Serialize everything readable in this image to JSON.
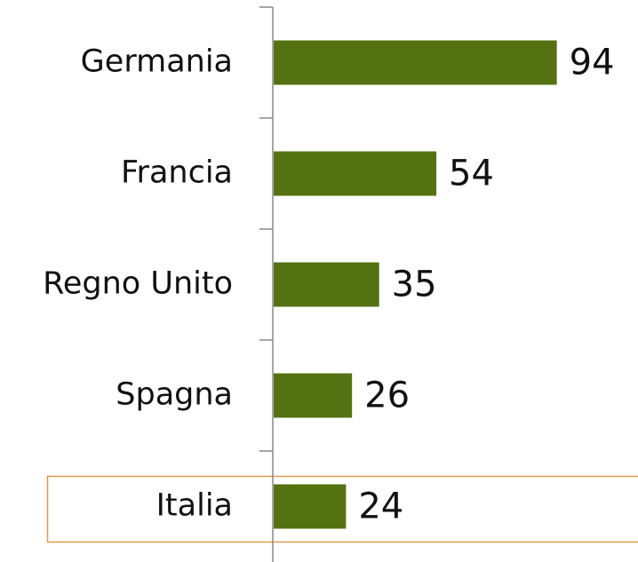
{
  "chart_data": {
    "type": "bar",
    "orientation": "horizontal",
    "categories": [
      "Germania",
      "Francia",
      "Regno Unito",
      "Spagna",
      "Italia"
    ],
    "values": [
      94,
      54,
      35,
      26,
      24
    ],
    "color": "#547212"
  }
}
